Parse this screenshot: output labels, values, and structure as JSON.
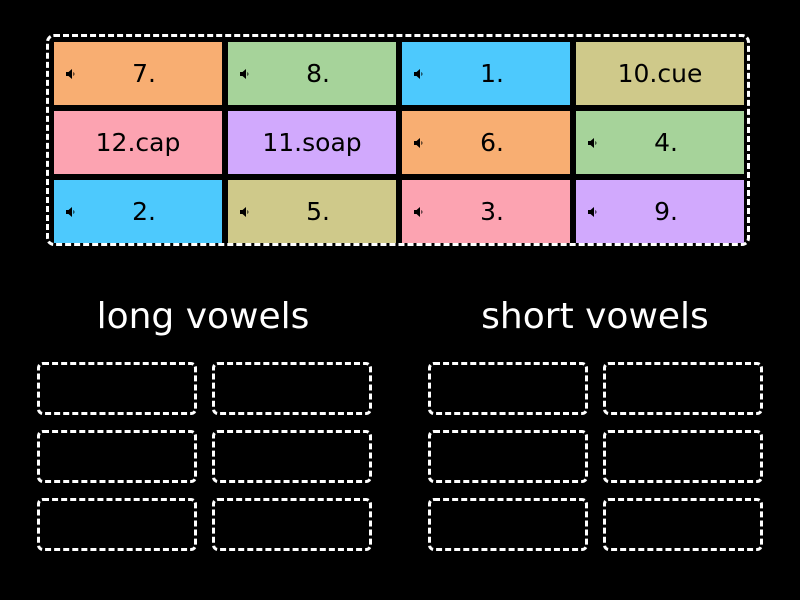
{
  "colors": {
    "orange": "#f8ae72",
    "green": "#a6d39a",
    "blue": "#4dc9fd",
    "khaki": "#cfc98a",
    "pink": "#fca3b1",
    "purple": "#d1a9fd"
  },
  "tiles": [
    {
      "label": "7.",
      "audio": true,
      "color": "orange"
    },
    {
      "label": "8.",
      "audio": true,
      "color": "green"
    },
    {
      "label": "1.",
      "audio": true,
      "color": "blue"
    },
    {
      "label": "10.cue",
      "audio": false,
      "color": "khaki"
    },
    {
      "label": "12.cap",
      "audio": false,
      "color": "pink"
    },
    {
      "label": "11.soap",
      "audio": false,
      "color": "purple"
    },
    {
      "label": "6.",
      "audio": true,
      "color": "orange"
    },
    {
      "label": "4.",
      "audio": true,
      "color": "green"
    },
    {
      "label": "2.",
      "audio": true,
      "color": "blue"
    },
    {
      "label": "5.",
      "audio": true,
      "color": "khaki"
    },
    {
      "label": "3.",
      "audio": true,
      "color": "pink"
    },
    {
      "label": "9.",
      "audio": true,
      "color": "purple"
    }
  ],
  "groups": [
    {
      "title": "long vowels",
      "slots": 6
    },
    {
      "title": "short vowels",
      "slots": 6
    }
  ],
  "icons": {
    "audio": "speaker-icon"
  }
}
